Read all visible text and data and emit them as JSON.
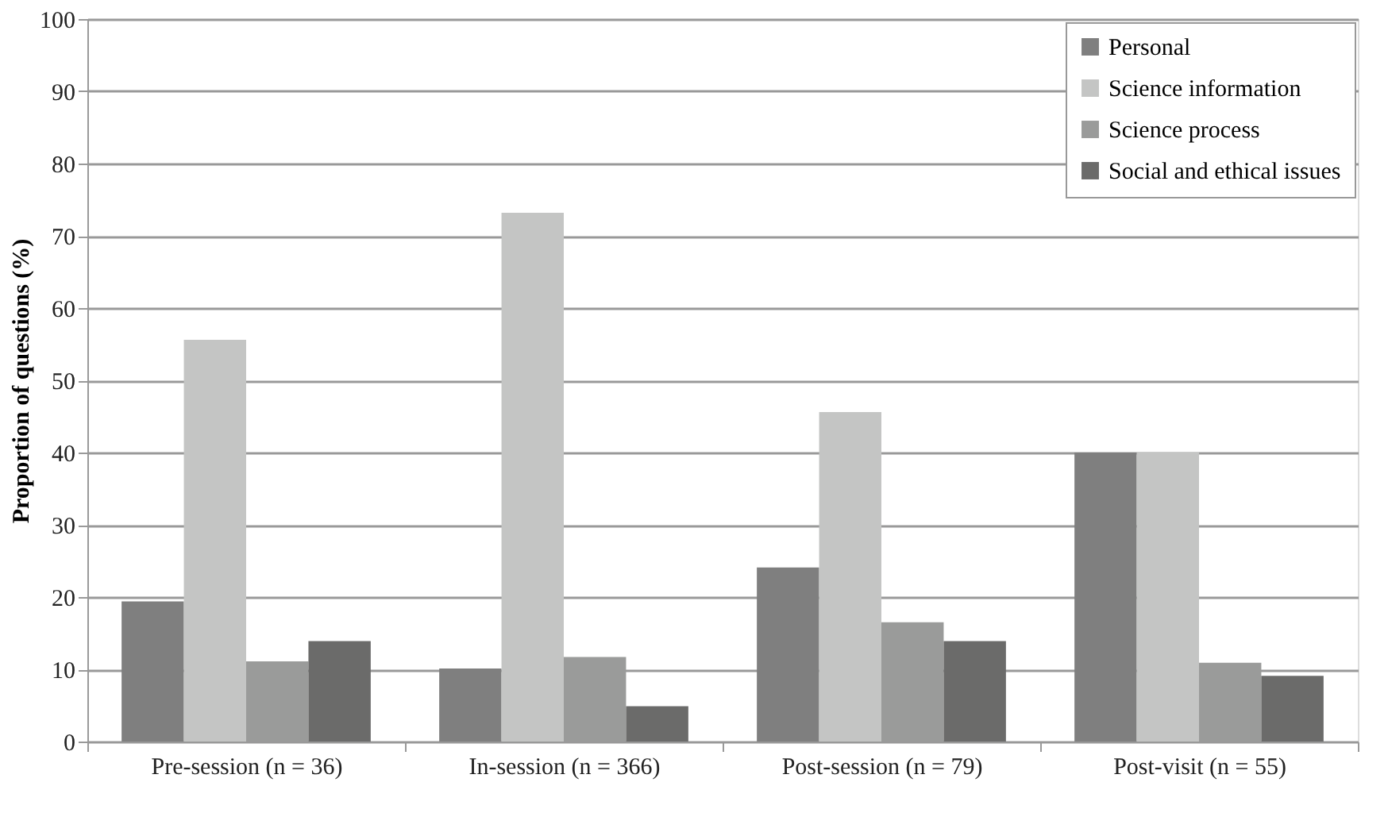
{
  "chart_data": {
    "type": "bar",
    "ylabel": "Proportion of questions (%)",
    "categories": [
      "Pre-session (n = 36)",
      "In-session (n = 366)",
      "Post-session (n = 79)",
      "Post-visit (n = 55)"
    ],
    "series": [
      {
        "name": "Personal",
        "color": "#7f7f7f",
        "values": [
          19.4,
          10.1,
          24.1,
          40
        ]
      },
      {
        "name": "Science information",
        "color": "#c4c5c4",
        "values": [
          55.6,
          73.2,
          45.6,
          40
        ]
      },
      {
        "name": "Science process",
        "color": "#9a9b9a",
        "values": [
          11.1,
          11.7,
          16.5,
          10.9
        ]
      },
      {
        "name": "Social and ethical issues",
        "color": "#6b6b6a",
        "values": [
          13.9,
          4.9,
          13.9,
          9.1
        ]
      }
    ],
    "ylim": [
      0,
      100
    ],
    "yticks": [
      0,
      10,
      20,
      30,
      40,
      50,
      60,
      70,
      80,
      90,
      100
    ],
    "grid": "y",
    "legend": "top right"
  }
}
